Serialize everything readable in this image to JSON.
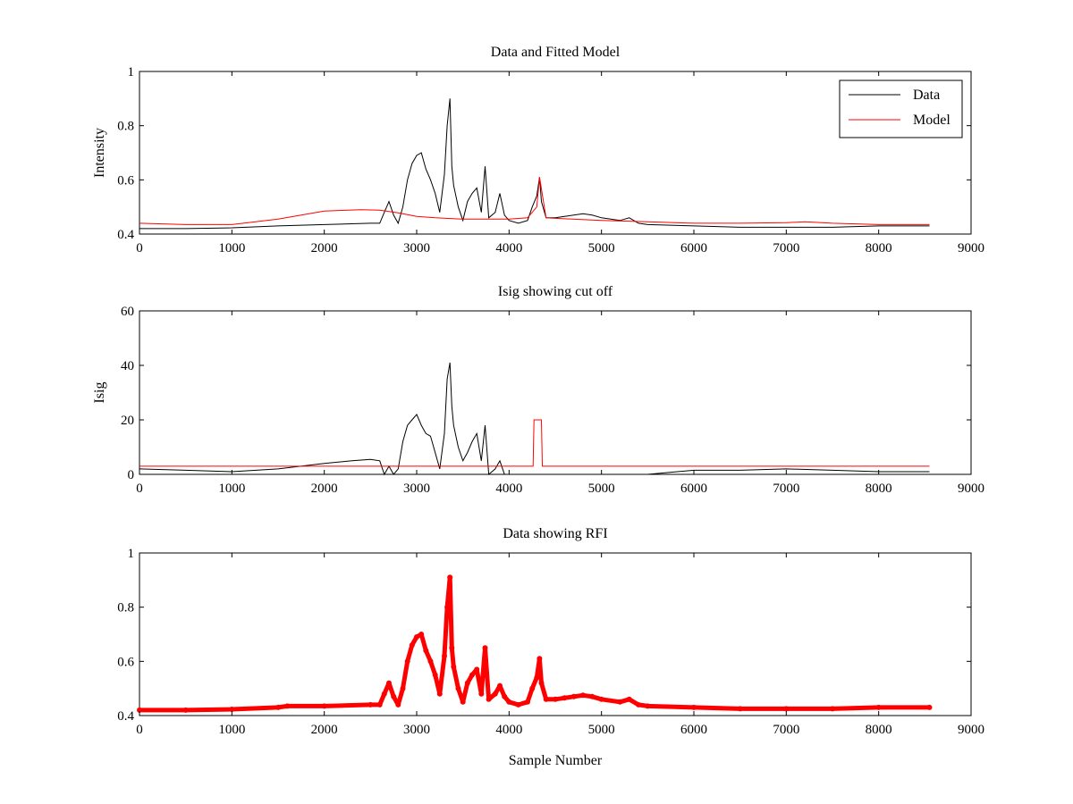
{
  "chart_data": [
    {
      "type": "line",
      "title": "Data and Fitted Model",
      "xlabel": "",
      "ylabel": "Intensity",
      "xlim": [
        0,
        9000
      ],
      "ylim": [
        0.4,
        1.0
      ],
      "xticks": [
        "0",
        "1000",
        "2000",
        "3000",
        "4000",
        "5000",
        "6000",
        "7000",
        "8000",
        "9000"
      ],
      "yticks": [
        "0.4",
        "0.6",
        "0.8",
        "1"
      ],
      "grid": false,
      "legend": "top-right",
      "series": [
        {
          "name": "Data",
          "color": "#000000",
          "style": "line",
          "x": [
            0,
            500,
            1000,
            1500,
            2000,
            2500,
            2600,
            2650,
            2700,
            2750,
            2800,
            2850,
            2900,
            2950,
            3000,
            3050,
            3100,
            3150,
            3200,
            3250,
            3300,
            3330,
            3360,
            3380,
            3400,
            3450,
            3500,
            3550,
            3600,
            3650,
            3700,
            3740,
            3780,
            3850,
            3900,
            3950,
            4000,
            4100,
            4200,
            4250,
            4300,
            4330,
            4350,
            4400,
            4500,
            4600,
            4700,
            4800,
            4900,
            5000,
            5200,
            5300,
            5400,
            5500,
            6000,
            6500,
            7000,
            7500,
            8000,
            8550
          ],
          "y": [
            0.42,
            0.42,
            0.423,
            0.43,
            0.435,
            0.44,
            0.44,
            0.48,
            0.52,
            0.47,
            0.44,
            0.5,
            0.6,
            0.66,
            0.69,
            0.7,
            0.64,
            0.6,
            0.55,
            0.48,
            0.62,
            0.8,
            0.9,
            0.65,
            0.58,
            0.5,
            0.45,
            0.52,
            0.55,
            0.57,
            0.48,
            0.65,
            0.46,
            0.48,
            0.55,
            0.47,
            0.45,
            0.44,
            0.45,
            0.5,
            0.54,
            0.61,
            0.52,
            0.46,
            0.46,
            0.465,
            0.47,
            0.475,
            0.47,
            0.46,
            0.45,
            0.46,
            0.44,
            0.435,
            0.43,
            0.425,
            0.425,
            0.425,
            0.43,
            0.43
          ]
        },
        {
          "name": "Model",
          "color": "#ff0000",
          "style": "line",
          "x": [
            0,
            500,
            1000,
            1500,
            2000,
            2400,
            2600,
            2800,
            3000,
            3200,
            3500,
            3800,
            4000,
            4200,
            4300,
            4330,
            4400,
            4500,
            5000,
            5500,
            6000,
            6500,
            7000,
            7200,
            7500,
            8000,
            8550
          ],
          "y": [
            0.44,
            0.435,
            0.435,
            0.455,
            0.485,
            0.49,
            0.488,
            0.478,
            0.465,
            0.46,
            0.455,
            0.455,
            0.455,
            0.46,
            0.5,
            0.61,
            0.46,
            0.458,
            0.45,
            0.445,
            0.44,
            0.44,
            0.442,
            0.445,
            0.44,
            0.435,
            0.435
          ]
        }
      ]
    },
    {
      "type": "line",
      "title": "Isig showing cut off",
      "xlabel": "",
      "ylabel": "Isig",
      "xlim": [
        0,
        9000
      ],
      "ylim": [
        0,
        60
      ],
      "xticks": [
        "0",
        "1000",
        "2000",
        "3000",
        "4000",
        "5000",
        "6000",
        "7000",
        "8000",
        "9000"
      ],
      "yticks": [
        "0",
        "20",
        "40",
        "60"
      ],
      "grid": false,
      "series": [
        {
          "color": "#000000",
          "style": "line",
          "x": [
            0,
            500,
            1000,
            1500,
            2000,
            2300,
            2500,
            2600,
            2650,
            2700,
            2750,
            2800,
            2850,
            2900,
            2950,
            3000,
            3050,
            3100,
            3150,
            3200,
            3250,
            3300,
            3330,
            3360,
            3380,
            3400,
            3450,
            3500,
            3550,
            3600,
            3650,
            3700,
            3740,
            3780,
            3850,
            3900,
            3950,
            4000,
            4200,
            4500,
            5000,
            5500,
            6000,
            6500,
            7000,
            7500,
            8000,
            8550
          ],
          "y": [
            2,
            1.5,
            1,
            2,
            4,
            5,
            5.5,
            5,
            0,
            3,
            0,
            2,
            12,
            18,
            20,
            22,
            18,
            15,
            14,
            8,
            2,
            15,
            35,
            41,
            25,
            18,
            10,
            5,
            8,
            12,
            15,
            5,
            18,
            0,
            2,
            5,
            0,
            0,
            0,
            0,
            0,
            0,
            1.5,
            1.5,
            2,
            1.5,
            1,
            1
          ]
        },
        {
          "color": "#ff0000",
          "style": "line",
          "x": [
            0,
            4260,
            4270,
            4350,
            4360,
            8550
          ],
          "y": [
            3,
            3,
            20,
            20,
            3,
            3
          ]
        }
      ]
    },
    {
      "type": "scatter",
      "title": "Data showing RFI",
      "xlabel": "Sample Number",
      "ylabel": "",
      "xlim": [
        0,
        9000
      ],
      "ylim": [
        0.4,
        1.0
      ],
      "xticks": [
        "0",
        "1000",
        "2000",
        "3000",
        "4000",
        "5000",
        "6000",
        "7000",
        "8000",
        "9000"
      ],
      "yticks": [
        "0.4",
        "0.6",
        "0.8",
        "1"
      ],
      "grid": false,
      "series": [
        {
          "color": "#ff0000",
          "style": "markers",
          "x": [
            0,
            500,
            1000,
            1500,
            1600,
            2000,
            2500,
            2600,
            2650,
            2700,
            2750,
            2800,
            2850,
            2900,
            2950,
            3000,
            3050,
            3100,
            3150,
            3200,
            3250,
            3300,
            3330,
            3360,
            3380,
            3400,
            3450,
            3500,
            3550,
            3600,
            3650,
            3700,
            3740,
            3780,
            3850,
            3900,
            3950,
            4000,
            4100,
            4200,
            4250,
            4300,
            4330,
            4350,
            4400,
            4500,
            4600,
            4700,
            4800,
            4900,
            5000,
            5200,
            5300,
            5400,
            5500,
            6000,
            6500,
            7000,
            7500,
            8000,
            8550
          ],
          "y": [
            0.42,
            0.42,
            0.423,
            0.43,
            0.435,
            0.435,
            0.44,
            0.44,
            0.48,
            0.52,
            0.47,
            0.44,
            0.5,
            0.6,
            0.66,
            0.69,
            0.7,
            0.64,
            0.6,
            0.55,
            0.48,
            0.62,
            0.8,
            0.91,
            0.65,
            0.58,
            0.5,
            0.45,
            0.52,
            0.55,
            0.57,
            0.48,
            0.65,
            0.46,
            0.48,
            0.51,
            0.47,
            0.45,
            0.44,
            0.45,
            0.5,
            0.54,
            0.61,
            0.52,
            0.46,
            0.46,
            0.465,
            0.47,
            0.475,
            0.47,
            0.46,
            0.45,
            0.46,
            0.44,
            0.435,
            0.43,
            0.425,
            0.425,
            0.425,
            0.43,
            0.43
          ]
        }
      ]
    }
  ]
}
